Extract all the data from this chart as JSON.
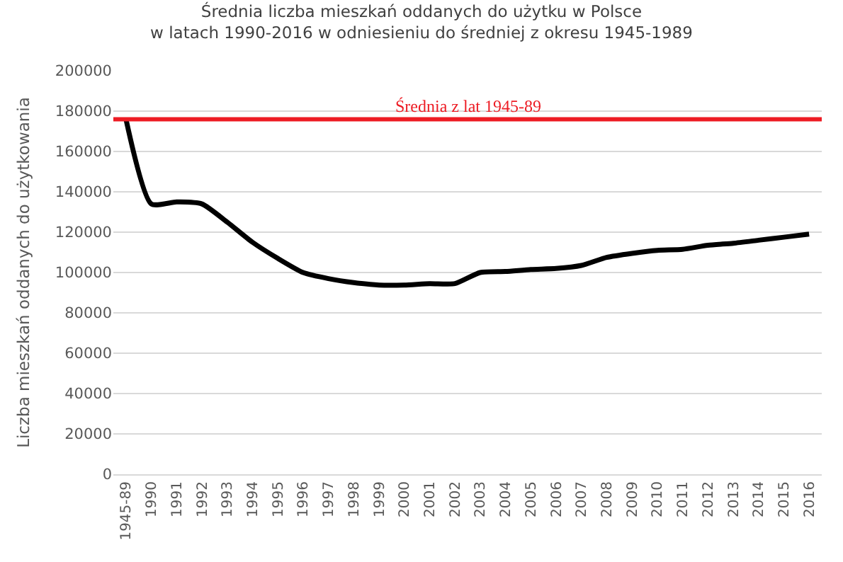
{
  "chart_data": {
    "type": "line",
    "title": "Średnia liczba mieszkań oddanych do użytku w Polsce\nw latach 1990-2016 w odniesieniu do średniej z okresu 1945-1989",
    "ylabel": "Liczba mieszkań oddanych do użytkowania",
    "categories": [
      "1945-89",
      "1990",
      "1991",
      "1992",
      "1993",
      "1994",
      "1995",
      "1996",
      "1997",
      "1998",
      "1999",
      "2000",
      "2001",
      "2002",
      "2003",
      "2004",
      "2005",
      "2006",
      "2007",
      "2008",
      "2009",
      "2010",
      "2011",
      "2012",
      "2013",
      "2014",
      "2015",
      "2016"
    ],
    "series": [
      {
        "color": "#000000",
        "values": [
          176000,
          134000,
          135000,
          134000,
          125000,
          115000,
          107000,
          100000,
          97000,
          95000,
          93800,
          93800,
          94500,
          94500,
          100000,
          100500,
          101500,
          102000,
          103500,
          107500,
          109500,
          111000,
          111500,
          113500,
          114500,
          116000,
          117500,
          119000
        ]
      }
    ],
    "ylim": [
      0,
      200000
    ],
    "yticks": [
      0,
      20000,
      40000,
      60000,
      80000,
      100000,
      120000,
      140000,
      160000,
      180000,
      200000
    ],
    "grid": "y",
    "marker": "none",
    "line_style": "solid",
    "ref_lines": [
      {
        "axis": "y",
        "value": 176000,
        "label": "Średnia z lat 1945-89",
        "color": "#ed1c24"
      }
    ]
  }
}
